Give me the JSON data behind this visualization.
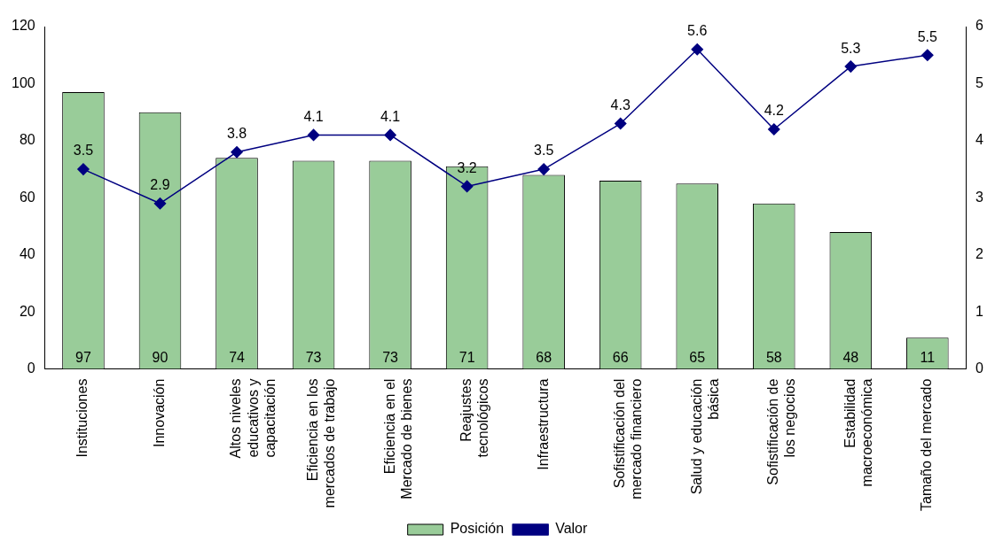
{
  "chart_data": {
    "type": "bar",
    "categories": [
      "Instituciones",
      "Innovación",
      "Altos niveles educativos y capacitación",
      "Eficiencia en los mercados de trabajo",
      "Eficiencia en el Mercado de bienes",
      "Reajustes tecnológicos",
      "Infraestructura",
      "Sofistificación del mercado financiero",
      "Salud y educación básica",
      "Sofistificación de los negocios",
      "Estabilidad macroeconómica",
      "Tamaño del mercado"
    ],
    "series": [
      {
        "name": "Posición",
        "color": "#99cc99",
        "values": [
          97,
          90,
          74,
          73,
          73,
          71,
          68,
          66,
          65,
          58,
          48,
          11
        ]
      },
      {
        "name": "Valor",
        "type": "line",
        "axis": "y2",
        "color": "#000080",
        "values": [
          3.5,
          2.9,
          3.8,
          4.1,
          4.1,
          3.2,
          3.5,
          4.3,
          5.6,
          4.2,
          5.3,
          5.5
        ]
      }
    ],
    "ylim": [
      0,
      120
    ],
    "yticks": [
      0,
      20,
      40,
      60,
      80,
      100,
      120
    ],
    "y2lim": [
      0,
      6
    ],
    "y2ticks": [
      0,
      1,
      2,
      3,
      4,
      5,
      6
    ],
    "grid": false,
    "legend": "bottom",
    "marker": "diamond",
    "line_style": "solid",
    "data_labels": true
  }
}
